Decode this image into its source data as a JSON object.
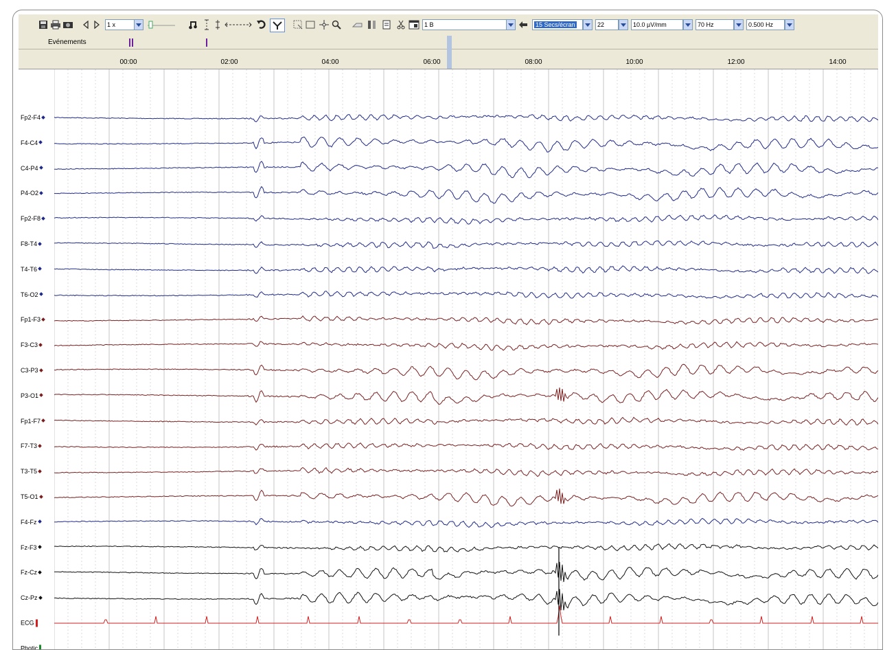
{
  "toolbar": {
    "speed_value": "1 x",
    "montage_value": "1 B",
    "timebase_value": "15 Secs/écran",
    "channel_count_value": "22",
    "sensitivity_value": "10.0 µV/mm",
    "lowpass_value": "70 Hz",
    "highpass_value": "0.500 Hz",
    "icons": [
      "save-icon",
      "print-icon",
      "camera-icon",
      "prev-page-icon",
      "next-page-icon",
      "slider-icon",
      "music-note-icon",
      "marker-split-icon",
      "marker-split-icon",
      "arrows-icon",
      "undo-icon",
      "filter-icon",
      "select-rect-icon",
      "rectangle-icon",
      "crosshair-icon",
      "zoom-icon",
      "hand-icon",
      "bars-icon",
      "document-icon",
      "scissors-icon",
      "window-icon",
      "back-arrow-icon"
    ]
  },
  "events": {
    "label": "Evénements"
  },
  "time_ruler": {
    "labels": [
      "00:00",
      "02:00",
      "04:00",
      "06:00",
      "08:00",
      "10:00",
      "12:00",
      "14:00"
    ]
  },
  "colors": {
    "right_hemisphere": "#1f2a88",
    "left_hemisphere": "#7a1f1f",
    "midline": "#111111",
    "ecg": "#d22020",
    "photic": "#1a8a2a",
    "grid": "#c4c4c4",
    "toolbar_bg": "#ece9d8",
    "selection": "#316ac5"
  },
  "channels": [
    {
      "label": "Fp2-F4",
      "group": "right"
    },
    {
      "label": "F4-C4",
      "group": "right"
    },
    {
      "label": "C4-P4",
      "group": "right"
    },
    {
      "label": "P4-O2",
      "group": "right"
    },
    {
      "label": "Fp2-F8",
      "group": "right"
    },
    {
      "label": "F8-T4",
      "group": "right"
    },
    {
      "label": "T4-T6",
      "group": "right"
    },
    {
      "label": "T6-O2",
      "group": "right"
    },
    {
      "label": "Fp1-F3",
      "group": "left"
    },
    {
      "label": "F3-C3",
      "group": "left"
    },
    {
      "label": "C3-P3",
      "group": "left"
    },
    {
      "label": "P3-O1",
      "group": "left"
    },
    {
      "label": "Fp1-F7",
      "group": "left"
    },
    {
      "label": "F7-T3",
      "group": "left"
    },
    {
      "label": "T3-T5",
      "group": "left"
    },
    {
      "label": "T5-O1",
      "group": "left"
    },
    {
      "label": "F4-Fz",
      "group": "midline-right"
    },
    {
      "label": "Fz-F3",
      "group": "midline"
    },
    {
      "label": "Fz-Cz",
      "group": "midline"
    },
    {
      "label": "Cz-Pz",
      "group": "midline"
    },
    {
      "label": "ECG",
      "group": "ecg"
    },
    {
      "label": "Photic",
      "group": "photic"
    }
  ]
}
